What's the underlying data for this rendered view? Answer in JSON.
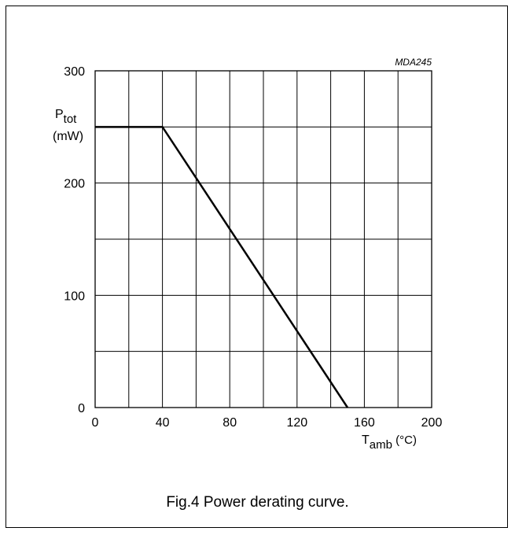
{
  "chart_data": {
    "type": "line",
    "code": "MDA245",
    "xlim": [
      0,
      200
    ],
    "ylim": [
      0,
      300
    ],
    "x_ticks": [
      0,
      40,
      80,
      120,
      160,
      200
    ],
    "y_ticks": [
      0,
      100,
      200,
      300
    ],
    "x_grid_step": 20,
    "y_grid_step": 50,
    "grid": true,
    "xlabel": {
      "main": "T",
      "sub": "amb",
      "unit": " (°C)"
    },
    "ylabel": {
      "main": "P",
      "sub": "tot",
      "unit": "(mW)"
    },
    "series": [
      {
        "x": [
          0,
          40,
          150
        ],
        "y": [
          250,
          250,
          0
        ]
      }
    ]
  },
  "caption": "Fig.4  Power derating curve."
}
